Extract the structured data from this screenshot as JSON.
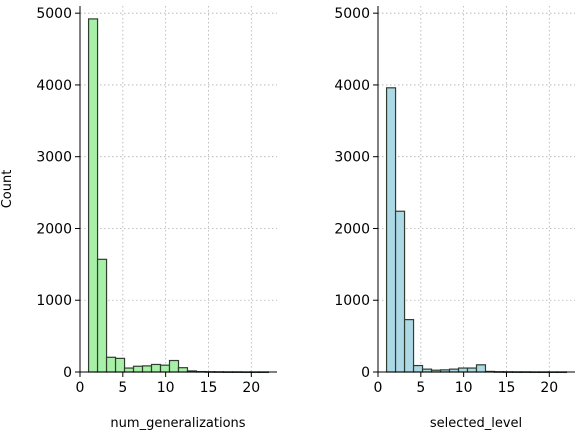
{
  "chart_data": [
    {
      "type": "bar",
      "subtype": "histogram",
      "xlabel": "num_generalizations",
      "ylabel": "Count",
      "xlim": [
        0,
        23
      ],
      "ylim": [
        0,
        5100
      ],
      "xticks": [
        0,
        5,
        10,
        15,
        20
      ],
      "yticks": [
        0,
        1000,
        2000,
        3000,
        4000,
        5000
      ],
      "grid": true,
      "color": "#a8f0a8",
      "edgecolor": "#2f3f2f",
      "bins": [
        {
          "x0": 1.0,
          "x1": 2.05,
          "value": 4920
        },
        {
          "x0": 2.05,
          "x1": 3.1,
          "value": 1570
        },
        {
          "x0": 3.1,
          "x1": 4.15,
          "value": 205
        },
        {
          "x0": 4.15,
          "x1": 5.2,
          "value": 190
        },
        {
          "x0": 5.2,
          "x1": 6.25,
          "value": 55
        },
        {
          "x0": 6.25,
          "x1": 7.3,
          "value": 80
        },
        {
          "x0": 7.3,
          "x1": 8.35,
          "value": 85
        },
        {
          "x0": 8.35,
          "x1": 9.4,
          "value": 105
        },
        {
          "x0": 9.4,
          "x1": 10.45,
          "value": 95
        },
        {
          "x0": 10.45,
          "x1": 11.5,
          "value": 160
        },
        {
          "x0": 11.5,
          "x1": 12.55,
          "value": 60
        },
        {
          "x0": 12.55,
          "x1": 13.6,
          "value": 15
        },
        {
          "x0": 13.6,
          "x1": 14.65,
          "value": 6
        },
        {
          "x0": 14.65,
          "x1": 15.7,
          "value": 4
        },
        {
          "x0": 15.7,
          "x1": 16.75,
          "value": 3
        },
        {
          "x0": 16.75,
          "x1": 17.8,
          "value": 2
        },
        {
          "x0": 17.8,
          "x1": 18.85,
          "value": 2
        },
        {
          "x0": 18.85,
          "x1": 19.9,
          "value": 1
        },
        {
          "x0": 19.9,
          "x1": 20.95,
          "value": 1
        },
        {
          "x0": 20.95,
          "x1": 22.0,
          "value": 1
        }
      ]
    },
    {
      "type": "bar",
      "subtype": "histogram",
      "xlabel": "selected_level",
      "ylabel": "",
      "xlim": [
        0,
        23
      ],
      "ylim": [
        0,
        5100
      ],
      "xticks": [
        0,
        5,
        10,
        15,
        20
      ],
      "yticks": [
        0,
        1000,
        2000,
        3000,
        4000,
        5000
      ],
      "grid": true,
      "color": "#add8e6",
      "edgecolor": "#2f3f3f",
      "bins": [
        {
          "x0": 1.0,
          "x1": 2.05,
          "value": 3960
        },
        {
          "x0": 2.05,
          "x1": 3.1,
          "value": 2240
        },
        {
          "x0": 3.1,
          "x1": 4.15,
          "value": 730
        },
        {
          "x0": 4.15,
          "x1": 5.2,
          "value": 90
        },
        {
          "x0": 5.2,
          "x1": 6.25,
          "value": 40
        },
        {
          "x0": 6.25,
          "x1": 7.3,
          "value": 25
        },
        {
          "x0": 7.3,
          "x1": 8.35,
          "value": 30
        },
        {
          "x0": 8.35,
          "x1": 9.4,
          "value": 40
        },
        {
          "x0": 9.4,
          "x1": 10.45,
          "value": 55
        },
        {
          "x0": 10.45,
          "x1": 11.5,
          "value": 55
        },
        {
          "x0": 11.5,
          "x1": 12.55,
          "value": 100
        },
        {
          "x0": 12.55,
          "x1": 13.6,
          "value": 8
        },
        {
          "x0": 13.6,
          "x1": 14.65,
          "value": 4
        },
        {
          "x0": 14.65,
          "x1": 15.7,
          "value": 3
        },
        {
          "x0": 15.7,
          "x1": 16.75,
          "value": 2
        },
        {
          "x0": 16.75,
          "x1": 17.8,
          "value": 2
        },
        {
          "x0": 17.8,
          "x1": 18.85,
          "value": 1
        },
        {
          "x0": 18.85,
          "x1": 19.9,
          "value": 1
        },
        {
          "x0": 19.9,
          "x1": 20.95,
          "value": 1
        },
        {
          "x0": 20.95,
          "x1": 22.0,
          "value": 1
        }
      ]
    }
  ]
}
